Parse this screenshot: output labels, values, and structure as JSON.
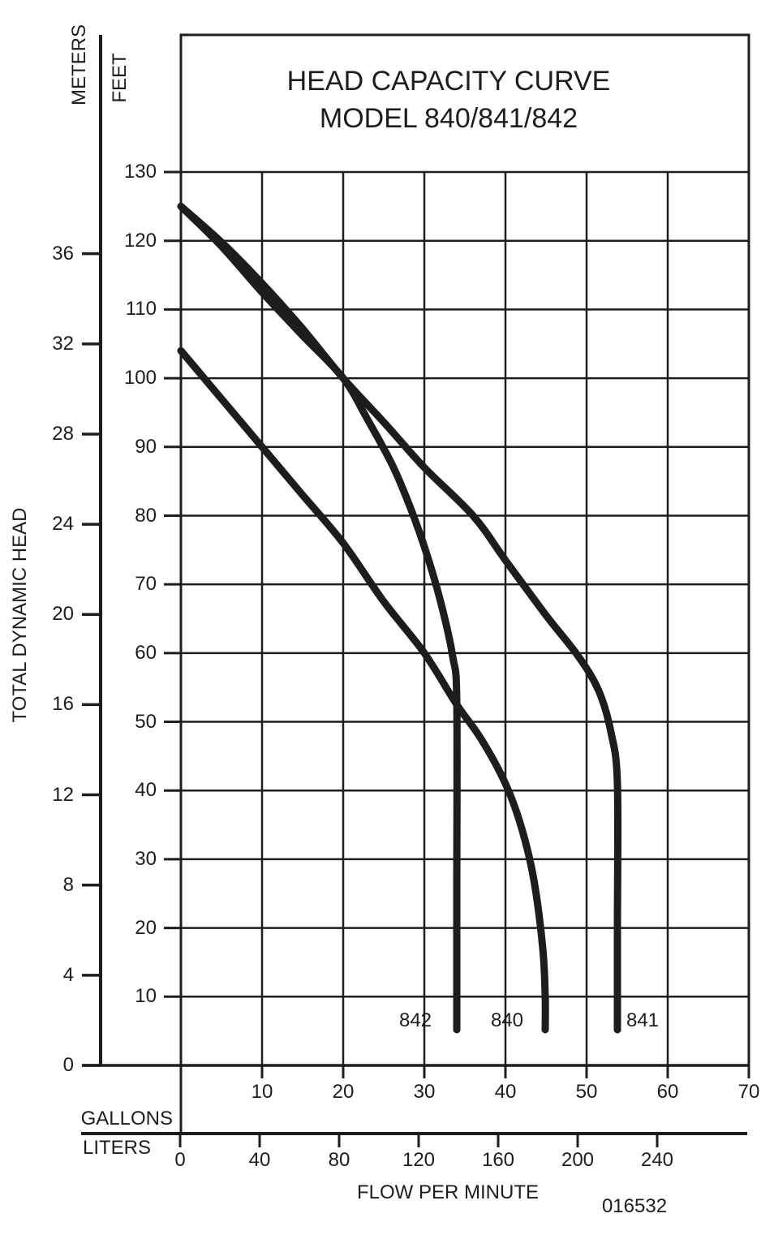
{
  "title": {
    "line1": "HEAD CAPACITY CURVE",
    "line2": "MODEL 840/841/842"
  },
  "y_axis_labels": {
    "primary_unit": "METERS",
    "secondary_unit": "FEET",
    "axis_title": "TOTAL DYNAMIC HEAD"
  },
  "x_axis_labels": {
    "primary_unit": "GALLONS",
    "secondary_unit": "LITERS",
    "axis_title": "FLOW PER MINUTE"
  },
  "footer": {
    "code": "016532"
  },
  "chart_data": {
    "type": "line",
    "title": "HEAD CAPACITY CURVE MODEL 840/841/842",
    "xlabel": "FLOW PER MINUTE",
    "ylabel": "TOTAL DYNAMIC HEAD",
    "grid": true,
    "x_axis": {
      "units": [
        {
          "name": "GALLONS",
          "ticks": [
            10,
            20,
            30,
            40,
            50,
            60,
            70
          ],
          "range": [
            0,
            70
          ]
        },
        {
          "name": "LITERS",
          "ticks": [
            0,
            40,
            80,
            120,
            160,
            200,
            240
          ],
          "range": [
            0,
            265
          ]
        }
      ]
    },
    "y_axis": {
      "units": [
        {
          "name": "FEET",
          "ticks": [
            130,
            120,
            110,
            100,
            90,
            80,
            70,
            60,
            50,
            40,
            30,
            20,
            10
          ],
          "range": [
            0,
            150
          ]
        },
        {
          "name": "METERS",
          "ticks": [
            36,
            32,
            28,
            24,
            20,
            16,
            12,
            8,
            4,
            0
          ],
          "range": [
            0,
            45.7
          ]
        }
      ]
    },
    "series": [
      {
        "name": "842",
        "shutoff_head_ft": 125,
        "max_flow_gal": 34,
        "points_gal_ft": [
          [
            0,
            125
          ],
          [
            5,
            119.2
          ],
          [
            10,
            112.5
          ],
          [
            15,
            106.2
          ],
          [
            20,
            100
          ],
          [
            23,
            94
          ],
          [
            26,
            87.5
          ],
          [
            28,
            82
          ],
          [
            30,
            75.5
          ],
          [
            32,
            67.5
          ],
          [
            33.5,
            59.5
          ],
          [
            34,
            53
          ],
          [
            34,
            25
          ],
          [
            34,
            5.2
          ]
        ],
        "label": {
          "text": "842",
          "gal": 28.9,
          "ft": 6.5
        }
      },
      {
        "name": "840",
        "shutoff_head_ft": 104,
        "max_flow_gal": 44.9,
        "points_gal_ft": [
          [
            0,
            104
          ],
          [
            5,
            97
          ],
          [
            10,
            90
          ],
          [
            15,
            83
          ],
          [
            20,
            76
          ],
          [
            25,
            67.5
          ],
          [
            30,
            60
          ],
          [
            34,
            52.5
          ],
          [
            37,
            47.5
          ],
          [
            40,
            41
          ],
          [
            42,
            34.5
          ],
          [
            43.5,
            27
          ],
          [
            44.6,
            17
          ],
          [
            44.9,
            10
          ],
          [
            44.9,
            5.2
          ]
        ],
        "label": {
          "text": "840",
          "gal": 40.2,
          "ft": 6.5
        }
      },
      {
        "name": "841",
        "shutoff_head_ft": 125,
        "max_flow_gal": 53.8,
        "points_gal_ft": [
          [
            0,
            125
          ],
          [
            5,
            119.8
          ],
          [
            10,
            113.8
          ],
          [
            15,
            107.2
          ],
          [
            20,
            100
          ],
          [
            25,
            93.6
          ],
          [
            30,
            87
          ],
          [
            36,
            80
          ],
          [
            40,
            73.5
          ],
          [
            45,
            65.5
          ],
          [
            49,
            59.5
          ],
          [
            51.5,
            54.5
          ],
          [
            53,
            48.5
          ],
          [
            53.8,
            41
          ],
          [
            53.8,
            20
          ],
          [
            53.8,
            5.2
          ]
        ],
        "label": {
          "text": "841",
          "gal": 56.9,
          "ft": 6.5
        }
      }
    ],
    "footnote": "016532"
  }
}
